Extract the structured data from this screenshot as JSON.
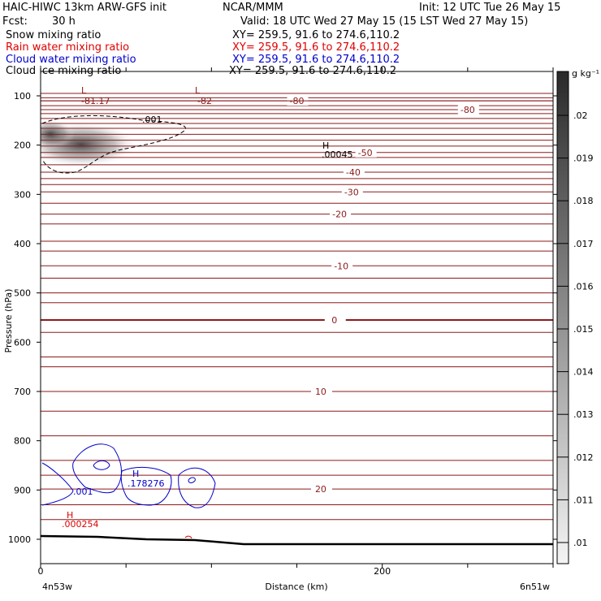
{
  "header": {
    "model": "HAIC-HIWC 13km ARW-GFS init",
    "org": "NCAR/MMM",
    "init": "Init: 12 UTC Tue 26 May 15",
    "fcst_label": "Fcst:",
    "fcst_value": "30 h",
    "valid": "Valid: 18 UTC Wed 27 May 15 (15 LST Wed 27 May 15)"
  },
  "fields": [
    {
      "name": "Snow mixing ratio",
      "xy": "XY= 259.5, 91.6 to 274.6,110.2",
      "color": "#000000"
    },
    {
      "name": "Rain water mixing ratio",
      "xy": "XY= 259.5, 91.6 to 274.6,110.2",
      "color": "#e00000"
    },
    {
      "name": "Cloud water mixing ratio",
      "xy": "XY= 259.5, 91.6 to 274.6,110.2",
      "color": "#0000cc"
    },
    {
      "name": "Cloud ice mixing ratio",
      "xy": "XY= 259.5, 91.6 to 274.6,110.2",
      "color": "#000000"
    }
  ],
  "chart_data": {
    "type": "heatmap",
    "xlabel": "Distance (km)",
    "ylabel": "Pressure (hPa)",
    "x_ticks": [
      0,
      200
    ],
    "xlim": [
      0,
      300
    ],
    "y_ticks": [
      100,
      200,
      300,
      400,
      500,
      600,
      700,
      800,
      900,
      1000
    ],
    "ylim": [
      1050,
      50
    ],
    "x_start_label": "4n53w",
    "x_end_label": "6n51w",
    "colorbar": {
      "unit": "g kg⁻¹",
      "ticks": [
        ".02",
        ".019",
        ".018",
        ".017",
        ".016",
        ".015",
        ".014",
        ".013",
        ".012",
        ".011",
        ".01"
      ]
    },
    "temperature_contours": [
      {
        "label": "-80",
        "p": 110,
        "x": 150,
        "thick": false
      },
      {
        "label": "-80",
        "p": 110,
        "x": 480,
        "thick": false
      },
      {
        "label": "-80",
        "p": 128,
        "x": 250,
        "thick": false
      },
      {
        "label": "-50",
        "p": 215,
        "x": 190,
        "thick": false
      },
      {
        "label": "-40",
        "p": 255,
        "x": 183,
        "thick": false
      },
      {
        "label": "-30",
        "p": 295,
        "x": 182,
        "thick": false
      },
      {
        "label": "-20",
        "p": 340,
        "x": 175,
        "thick": false
      },
      {
        "label": "-10",
        "p": 445,
        "x": 176,
        "thick": false
      },
      {
        "label": "0",
        "p": 555,
        "x": 172,
        "thick": true
      },
      {
        "label": "10",
        "p": 700,
        "x": 164,
        "thick": false
      },
      {
        "label": "20",
        "p": 898,
        "x": 164,
        "thick": false
      }
    ],
    "extrema": [
      {
        "type": "L",
        "value": "-81.17",
        "color": "#8b1a1a"
      },
      {
        "type": "L",
        "value": "-82",
        "color": "#8b1a1a"
      },
      {
        "type": "H",
        "value": ".00045",
        "color": "#000000"
      },
      {
        "type": "H",
        "value": ".178276",
        "color": "#0000cc"
      },
      {
        "type": "H",
        "value": ".000254",
        "color": "#e00000"
      }
    ],
    "snow_contour_label": ".001",
    "cloud_water_contour_label": ".001"
  }
}
